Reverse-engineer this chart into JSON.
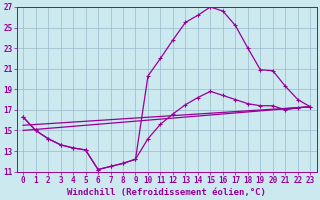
{
  "xlabel": "Windchill (Refroidissement éolien,°C)",
  "xlim": [
    -0.5,
    23.5
  ],
  "ylim": [
    11,
    27
  ],
  "xticks": [
    0,
    1,
    2,
    3,
    4,
    5,
    6,
    7,
    8,
    9,
    10,
    11,
    12,
    13,
    14,
    15,
    16,
    17,
    18,
    19,
    20,
    21,
    22,
    23
  ],
  "yticks": [
    11,
    13,
    15,
    17,
    19,
    21,
    23,
    25,
    27
  ],
  "bg_color": "#cce9f0",
  "line_color": "#990099",
  "grid_color": "#99bbcc",
  "curve1_x": [
    0,
    1,
    2,
    3,
    4,
    5,
    6,
    7,
    8,
    9,
    10,
    11,
    12,
    13,
    14,
    15,
    16,
    17,
    18,
    19,
    20,
    21,
    22,
    23
  ],
  "curve1_y": [
    16.3,
    15.0,
    14.2,
    13.6,
    13.3,
    13.1,
    11.2,
    11.5,
    11.8,
    12.2,
    20.3,
    22.0,
    23.8,
    25.5,
    26.2,
    27.0,
    26.6,
    25.2,
    23.0,
    20.9,
    20.8,
    19.3,
    18.0,
    17.3
  ],
  "curve2_x": [
    0,
    1,
    2,
    3,
    4,
    5,
    6,
    7,
    8,
    9,
    10,
    11,
    12,
    13,
    14,
    15,
    16,
    17,
    18,
    19,
    20,
    21,
    22,
    23
  ],
  "curve2_y": [
    16.3,
    15.0,
    14.2,
    13.6,
    13.3,
    13.1,
    11.2,
    11.5,
    11.8,
    12.2,
    14.2,
    15.6,
    16.6,
    17.5,
    18.2,
    18.8,
    18.4,
    18.0,
    17.6,
    17.4,
    17.4,
    17.0,
    17.2,
    17.3
  ],
  "line3_x": [
    0,
    23
  ],
  "line3_y": [
    15.5,
    17.3
  ],
  "line4_x": [
    0,
    23
  ],
  "line4_y": [
    15.0,
    17.3
  ],
  "tick_fontsize": 5.5,
  "label_fontsize": 6.5
}
